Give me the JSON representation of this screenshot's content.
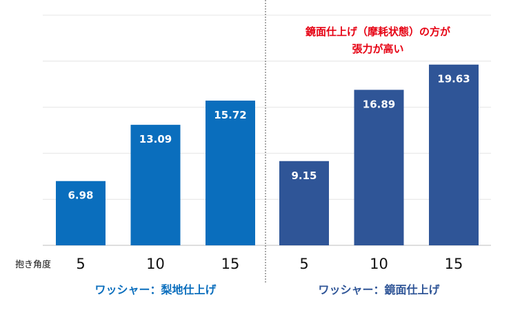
{
  "chart_data": {
    "type": "bar",
    "ylim": [
      0,
      25
    ],
    "grid": true,
    "x_axis_label": "抱き角度",
    "categories": [
      "5",
      "10",
      "15"
    ],
    "series": [
      {
        "name": "ワッシャー：梨地仕上げ",
        "values": [
          6.98,
          13.09,
          15.72
        ],
        "value_labels": [
          "6.98",
          "13.09",
          "15.72"
        ],
        "color": "#0a6ebd"
      },
      {
        "name": "ワッシャー：鏡面仕上げ",
        "values": [
          9.15,
          16.89,
          19.63
        ],
        "value_labels": [
          "9.15",
          "16.89",
          "19.63"
        ],
        "color": "#2f5597"
      }
    ],
    "annotation": {
      "lines": [
        "鏡面仕上げ（摩耗状態）の方が",
        "張力が高い"
      ],
      "color": "#e60012"
    }
  }
}
